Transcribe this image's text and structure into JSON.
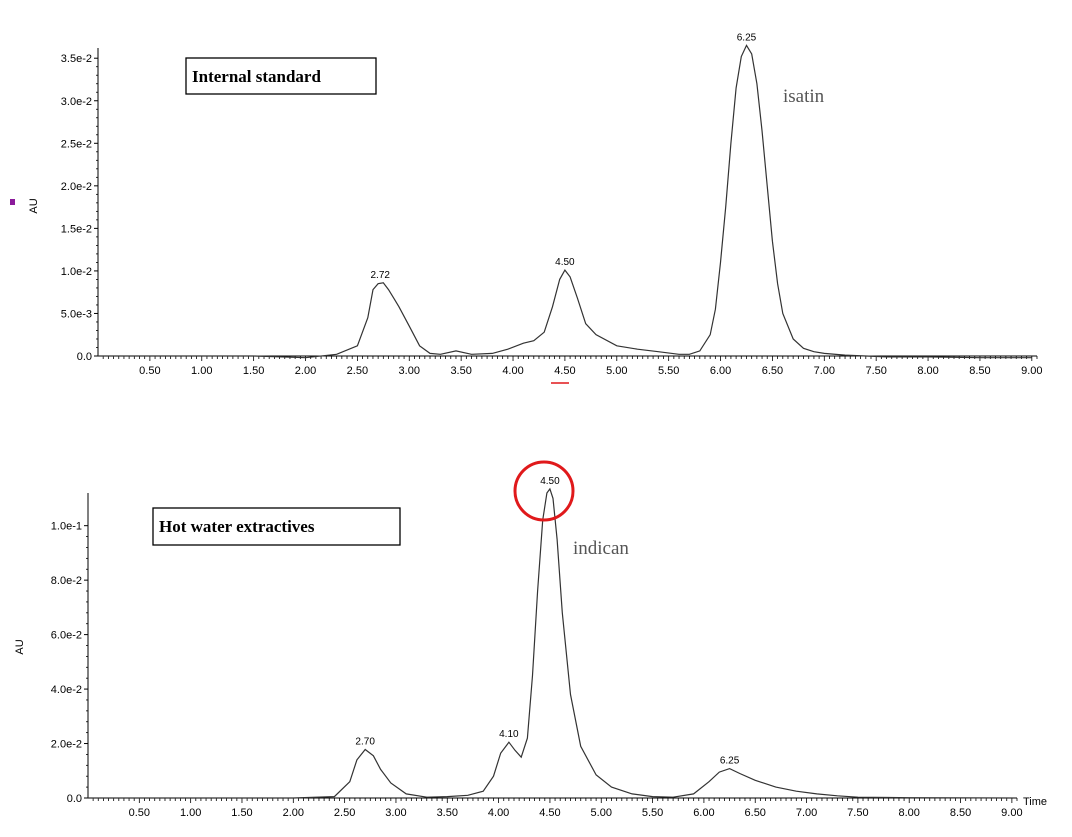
{
  "chart_data": [
    {
      "type": "line",
      "x_ticks": [
        "0.50",
        "1.00",
        "1.50",
        "2.00",
        "2.50",
        "3.00",
        "3.50",
        "4.00",
        "4.50",
        "5.00",
        "5.50",
        "6.00",
        "6.50",
        "7.00",
        "7.50",
        "8.00",
        "8.50",
        "9.00"
      ],
      "y_ticks": [
        "0.0",
        "5.0e-3",
        "1.0e-2",
        "1.5e-2",
        "2.0e-2",
        "2.5e-2",
        "3.0e-2",
        "3.5e-2"
      ],
      "xlim": [
        0,
        9.05
      ],
      "ylim": [
        0,
        0.0362
      ],
      "ylabel": "AU",
      "xlabel": "",
      "box_label": "Internal standard",
      "annotation": "isatin",
      "peaks": [
        {
          "rt": 2.72,
          "label": "2.72",
          "value": 0.0086
        },
        {
          "rt": 4.5,
          "label": "4.50",
          "value": 0.0101
        },
        {
          "rt": 6.25,
          "label": "6.25",
          "value": 0.0365
        }
      ],
      "series": [
        {
          "x": [
            0.0,
            1.5,
            2.0,
            2.3,
            2.5,
            2.6,
            2.65,
            2.7,
            2.75,
            2.8,
            2.85,
            2.9,
            3.0,
            3.1,
            3.2,
            3.3,
            3.45,
            3.6,
            3.8,
            3.95,
            4.1,
            4.2,
            4.3,
            4.38,
            4.45,
            4.5,
            4.55,
            4.62,
            4.7,
            4.8,
            5.0,
            5.2,
            5.4,
            5.6,
            5.7,
            5.8,
            5.9,
            5.95,
            6.0,
            6.05,
            6.1,
            6.15,
            6.2,
            6.25,
            6.3,
            6.35,
            6.4,
            6.45,
            6.5,
            6.55,
            6.6,
            6.7,
            6.8,
            6.9,
            7.0,
            7.2,
            7.4,
            7.6,
            8.0,
            8.5,
            9.0
          ],
          "y": [
            0.0,
            0.0,
            -0.0002,
            0.0002,
            0.0012,
            0.0045,
            0.0078,
            0.0085,
            0.0086,
            0.0078,
            0.0068,
            0.0058,
            0.0035,
            0.0012,
            0.0003,
            0.0002,
            0.0006,
            0.0002,
            0.0003,
            0.0008,
            0.0015,
            0.0018,
            0.0028,
            0.0058,
            0.009,
            0.0101,
            0.0093,
            0.0068,
            0.0038,
            0.0025,
            0.0012,
            0.0008,
            0.0005,
            0.0002,
            0.0002,
            0.0006,
            0.0025,
            0.0055,
            0.011,
            0.0175,
            0.025,
            0.0315,
            0.0352,
            0.0365,
            0.0355,
            0.032,
            0.0265,
            0.02,
            0.0135,
            0.0085,
            0.005,
            0.002,
            0.0009,
            0.0005,
            0.0003,
            0.0001,
            0.0,
            -0.0001,
            -0.0001,
            -0.0002,
            -0.0002
          ]
        }
      ]
    },
    {
      "type": "line",
      "x_ticks": [
        "0.50",
        "1.00",
        "1.50",
        "2.00",
        "2.50",
        "3.00",
        "3.50",
        "4.00",
        "4.50",
        "5.00",
        "5.50",
        "6.00",
        "6.50",
        "7.00",
        "7.50",
        "8.00",
        "8.50",
        "9.00"
      ],
      "y_ticks": [
        "0.0",
        "2.0e-2",
        "4.0e-2",
        "6.0e-2",
        "8.0e-2",
        "1.0e-1"
      ],
      "xlim": [
        0,
        9.05
      ],
      "ylim": [
        0,
        0.112
      ],
      "ylabel": "AU",
      "xlabel": "Time",
      "box_label": "Hot water extractives",
      "annotation": "indican",
      "peaks": [
        {
          "rt": 2.7,
          "label": "2.70",
          "value": 0.0178
        },
        {
          "rt": 4.1,
          "label": "4.10",
          "value": 0.0205
        },
        {
          "rt": 4.5,
          "label": "4.50",
          "value": 0.1135
        },
        {
          "rt": 6.25,
          "label": "6.25",
          "value": 0.0108
        }
      ],
      "highlighted_peak": "4.50",
      "highlight_color": "#e0191b",
      "series": [
        {
          "x": [
            0.0,
            1.5,
            2.0,
            2.4,
            2.55,
            2.62,
            2.7,
            2.78,
            2.85,
            2.95,
            3.1,
            3.3,
            3.5,
            3.7,
            3.85,
            3.95,
            4.02,
            4.1,
            4.16,
            4.22,
            4.28,
            4.33,
            4.38,
            4.43,
            4.47,
            4.5,
            4.53,
            4.57,
            4.62,
            4.7,
            4.8,
            4.95,
            5.1,
            5.3,
            5.5,
            5.7,
            5.9,
            6.05,
            6.15,
            6.25,
            6.35,
            6.5,
            6.7,
            6.9,
            7.1,
            7.3,
            7.5,
            8.0,
            9.0
          ],
          "y": [
            0.0,
            0.0,
            0.0,
            0.0005,
            0.006,
            0.014,
            0.0178,
            0.0155,
            0.0105,
            0.0055,
            0.0015,
            0.0003,
            0.0005,
            0.001,
            0.0025,
            0.008,
            0.0165,
            0.0205,
            0.0175,
            0.015,
            0.022,
            0.045,
            0.076,
            0.102,
            0.112,
            0.1135,
            0.11,
            0.095,
            0.068,
            0.038,
            0.019,
            0.0085,
            0.004,
            0.0015,
            0.0005,
            0.0003,
            0.0015,
            0.006,
            0.0095,
            0.0108,
            0.009,
            0.0065,
            0.004,
            0.0025,
            0.0015,
            0.0008,
            0.0003,
            0.0001,
            0.0
          ]
        }
      ]
    }
  ],
  "colors": {
    "marker": "#8b1a9a",
    "underline": "#e0191b"
  }
}
